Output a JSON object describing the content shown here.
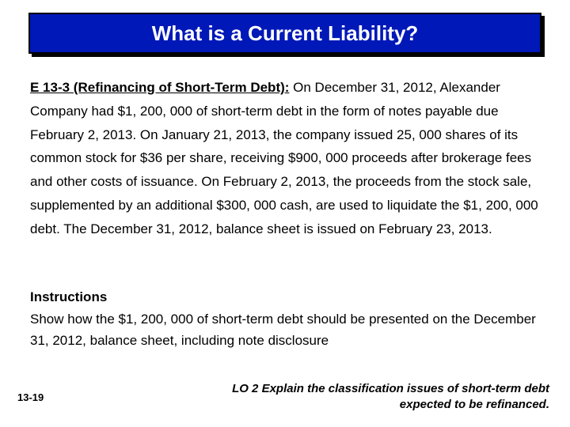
{
  "title": "What is a Current Liability?",
  "problem": {
    "label": "E 13-3 (Refinancing of Short-Term Debt):",
    "text": " On December 31, 2012, Alexander Company had $1, 200, 000 of short-term debt in the form of notes payable due February 2, 2013. On January 21, 2013, the company issued 25, 000 shares of its common stock for $36 per share, receiving $900, 000 proceeds after brokerage fees and other costs of issuance. On February 2, 2013, the proceeds from the stock sale, supplemented by an additional $300, 000 cash, are used to liquidate the $1, 200, 000 debt. The December 31, 2012, balance sheet is issued on February 23, 2013."
  },
  "instructions": {
    "heading": "Instructions",
    "text": "Show how the $1, 200, 000 of short-term debt should be presented on the December 31, 2012, balance sheet, including note disclosure"
  },
  "slide_number": "13-19",
  "learning_objective": "LO 2  Explain the classification issues of short-term debt expected to be refinanced.",
  "colors": {
    "title_bg": "#0018b8",
    "title_text": "#ffffff",
    "body_text": "#000000",
    "page_bg": "#ffffff"
  }
}
